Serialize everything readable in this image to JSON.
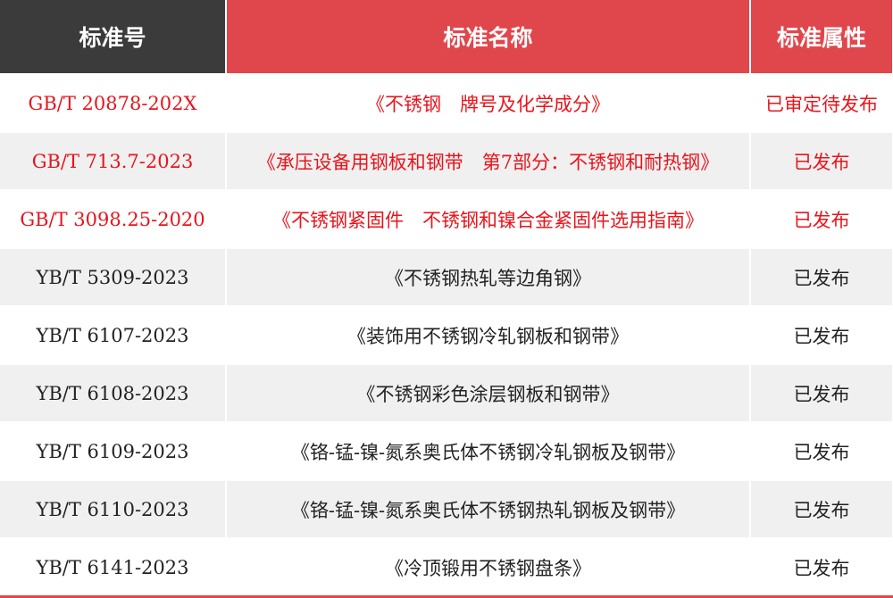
{
  "header": {
    "columns": [
      "标准号",
      "标准名称",
      "标准属性"
    ]
  },
  "table": {
    "rows": [
      [
        "GB/T 20878-202X",
        "《不锈钢　牌号及化学成分》",
        "已审定待发布"
      ],
      [
        "GB/T 713.7-2023",
        "《承压设备用钢板和钢带　第7部分：不锈钢和耐热钢》",
        "已发布"
      ],
      [
        "GB/T 3098.25-2020",
        "《不锈钢紧固件　不锈钢和镍合金紧固件选用指南》",
        "已发布"
      ],
      [
        "YB/T 5309-2023",
        "《不锈钢热轧等边角钢》",
        "已发布"
      ],
      [
        "YB/T 6107-2023",
        "《装饰用不锈钢冷轧钢板和钢带》",
        "已发布"
      ],
      [
        "YB/T 6108-2023",
        "《不锈钢彩色涂层钢板和钢带》",
        "已发布"
      ],
      [
        "YB/T 6109-2023",
        "《铬-锰-镍-氮系奥氏体不锈钢冷轧钢板及钢带》",
        "已发布"
      ],
      [
        "YB/T 6110-2023",
        "《铬-锰-镍-氮系奥氏体不锈钢热轧钢板及钢带》",
        "已发布"
      ],
      [
        "YB/T 6141-2023",
        "《冷顶锻用不锈钢盘条》",
        "已发布"
      ]
    ]
  }
}
